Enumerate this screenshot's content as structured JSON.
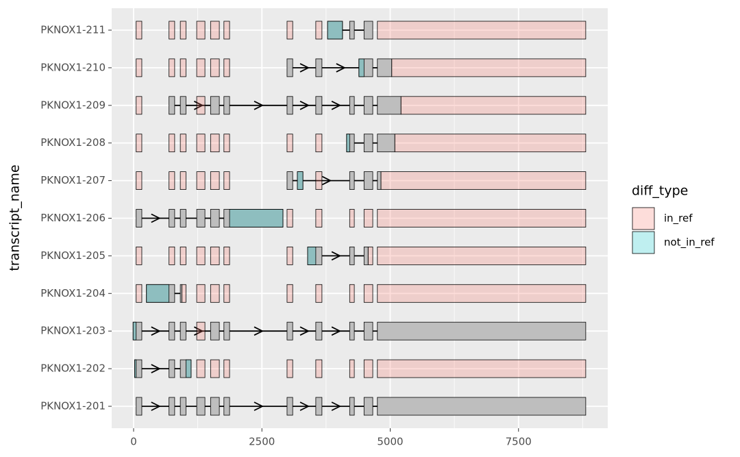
{
  "chart_data": {
    "type": "transcript",
    "y_label": "transcript_name",
    "legend_title": "diff_type",
    "categories": [
      "PKNOX1-211",
      "PKNOX1-210",
      "PKNOX1-209",
      "PKNOX1-208",
      "PKNOX1-207",
      "PKNOX1-206",
      "PKNOX1-205",
      "PKNOX1-204",
      "PKNOX1-203",
      "PKNOX1-202",
      "PKNOX1-201"
    ],
    "xlim": [
      -427,
      9239
    ],
    "xticks": [
      0,
      2500,
      5000,
      7500
    ],
    "grid": true,
    "exon_color": "#bebebe",
    "alpha": 0.25,
    "diff_types": [
      {
        "name": "in_ref",
        "color": "#f8766d"
      },
      {
        "name": "not_in_ref",
        "color": "#00bfc4"
      }
    ],
    "transcripts": [
      {
        "exons": [
          [
            3780,
            4070
          ],
          [
            4210,
            4300
          ],
          [
            4490,
            4660
          ]
        ],
        "in_ref": [
          [
            50,
            160
          ],
          [
            690,
            800
          ],
          [
            910,
            1020
          ],
          [
            1230,
            1390
          ],
          [
            1500,
            1670
          ],
          [
            1760,
            1870
          ],
          [
            2990,
            3100
          ],
          [
            3550,
            3670
          ],
          [
            4750,
            8810
          ]
        ],
        "not_in_ref": [
          [
            3780,
            4070
          ]
        ]
      },
      {
        "exons": [
          [
            2990,
            3100
          ],
          [
            3550,
            3670
          ],
          [
            4390,
            4660
          ],
          [
            4750,
            5030
          ]
        ],
        "in_ref": [
          [
            50,
            160
          ],
          [
            690,
            800
          ],
          [
            910,
            1020
          ],
          [
            1230,
            1390
          ],
          [
            1500,
            1670
          ],
          [
            1760,
            1870
          ],
          [
            5030,
            8810
          ]
        ],
        "not_in_ref": [
          [
            4390,
            4490
          ]
        ]
      },
      {
        "exons": [
          [
            690,
            800
          ],
          [
            910,
            1020
          ],
          [
            1500,
            1670
          ],
          [
            1760,
            1870
          ],
          [
            2990,
            3100
          ],
          [
            3550,
            3670
          ],
          [
            4210,
            4300
          ],
          [
            4490,
            4660
          ],
          [
            4750,
            5210
          ]
        ],
        "in_ref": [
          [
            50,
            160
          ],
          [
            1230,
            1390
          ],
          [
            5210,
            8810
          ]
        ],
        "not_in_ref": []
      },
      {
        "exons": [
          [
            4150,
            4300
          ],
          [
            4490,
            4660
          ],
          [
            4750,
            5090
          ]
        ],
        "in_ref": [
          [
            50,
            160
          ],
          [
            690,
            800
          ],
          [
            910,
            1020
          ],
          [
            1230,
            1390
          ],
          [
            1500,
            1670
          ],
          [
            1760,
            1870
          ],
          [
            2990,
            3100
          ],
          [
            3550,
            3670
          ],
          [
            5090,
            8810
          ]
        ],
        "not_in_ref": [
          [
            4150,
            4210
          ]
        ]
      },
      {
        "exons": [
          [
            2990,
            3100
          ],
          [
            3190,
            3300
          ],
          [
            4210,
            4300
          ],
          [
            4490,
            4660
          ],
          [
            4750,
            4820
          ]
        ],
        "in_ref": [
          [
            50,
            160
          ],
          [
            690,
            800
          ],
          [
            910,
            1020
          ],
          [
            1230,
            1390
          ],
          [
            1500,
            1670
          ],
          [
            1760,
            1870
          ],
          [
            3550,
            3670
          ],
          [
            4820,
            8810
          ]
        ],
        "not_in_ref": [
          [
            3190,
            3300
          ]
        ]
      },
      {
        "exons": [
          [
            50,
            160
          ],
          [
            690,
            800
          ],
          [
            910,
            1020
          ],
          [
            1230,
            1390
          ],
          [
            1500,
            1670
          ],
          [
            1760,
            2910
          ]
        ],
        "in_ref": [
          [
            2990,
            3100
          ],
          [
            3550,
            3670
          ],
          [
            4210,
            4300
          ],
          [
            4490,
            4660
          ],
          [
            4750,
            8810
          ]
        ],
        "not_in_ref": [
          [
            1870,
            2910
          ]
        ]
      },
      {
        "exons": [
          [
            3390,
            3670
          ],
          [
            4210,
            4300
          ],
          [
            4490,
            4570
          ]
        ],
        "in_ref": [
          [
            50,
            160
          ],
          [
            690,
            800
          ],
          [
            910,
            1020
          ],
          [
            1230,
            1390
          ],
          [
            1500,
            1670
          ],
          [
            1760,
            1870
          ],
          [
            2990,
            3100
          ],
          [
            4570,
            4660
          ],
          [
            4750,
            8810
          ]
        ],
        "not_in_ref": [
          [
            3390,
            3550
          ]
        ]
      },
      {
        "exons": [
          [
            250,
            800
          ],
          [
            910,
            940
          ]
        ],
        "in_ref": [
          [
            50,
            160
          ],
          [
            940,
            1020
          ],
          [
            1230,
            1390
          ],
          [
            1500,
            1670
          ],
          [
            1760,
            1870
          ],
          [
            2990,
            3100
          ],
          [
            3550,
            3670
          ],
          [
            4210,
            4300
          ],
          [
            4490,
            4660
          ],
          [
            4750,
            8810
          ]
        ],
        "not_in_ref": [
          [
            250,
            690
          ]
        ]
      },
      {
        "exons": [
          [
            -10,
            160
          ],
          [
            690,
            800
          ],
          [
            910,
            1020
          ],
          [
            1500,
            1670
          ],
          [
            1760,
            1870
          ],
          [
            2990,
            3100
          ],
          [
            3550,
            3670
          ],
          [
            4210,
            4300
          ],
          [
            4490,
            4660
          ],
          [
            4750,
            8810
          ]
        ],
        "in_ref": [
          [
            1230,
            1390
          ]
        ],
        "not_in_ref": [
          [
            -10,
            50
          ]
        ]
      },
      {
        "exons": [
          [
            20,
            160
          ],
          [
            690,
            800
          ],
          [
            910,
            1120
          ]
        ],
        "in_ref": [
          [
            1230,
            1390
          ],
          [
            1500,
            1670
          ],
          [
            1760,
            1870
          ],
          [
            2990,
            3100
          ],
          [
            3550,
            3670
          ],
          [
            4210,
            4300
          ],
          [
            4490,
            4660
          ],
          [
            4750,
            8810
          ]
        ],
        "not_in_ref": [
          [
            20,
            50
          ],
          [
            1020,
            1120
          ]
        ]
      },
      {
        "exons": [
          [
            50,
            160
          ],
          [
            690,
            800
          ],
          [
            910,
            1020
          ],
          [
            1230,
            1390
          ],
          [
            1500,
            1670
          ],
          [
            1760,
            1870
          ],
          [
            2990,
            3100
          ],
          [
            3550,
            3670
          ],
          [
            4210,
            4300
          ],
          [
            4490,
            4660
          ],
          [
            4750,
            8810
          ]
        ],
        "in_ref": [],
        "not_in_ref": []
      }
    ]
  }
}
